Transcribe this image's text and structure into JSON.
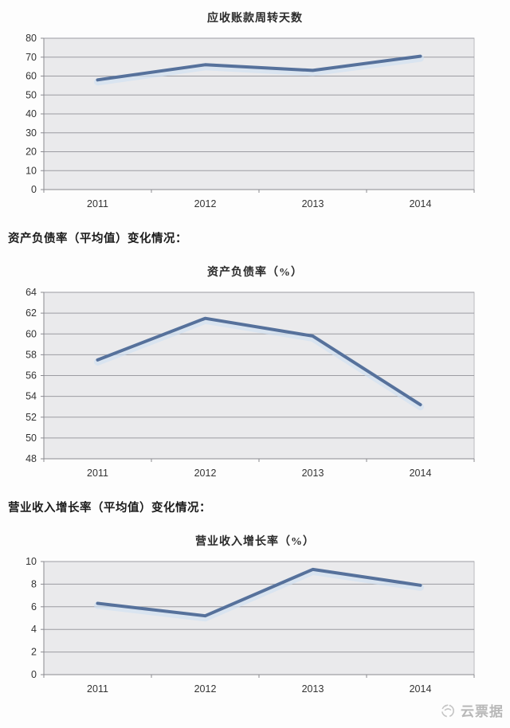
{
  "page": {
    "background": "#fdfdfd"
  },
  "chart_data": [
    {
      "type": "line",
      "section_label": "",
      "title": "应收账款周转天数",
      "categories": [
        "2011",
        "2012",
        "2013",
        "2014"
      ],
      "series": [
        {
          "name": "应收账款周转天数",
          "values": [
            58,
            66,
            63,
            70.5
          ]
        }
      ],
      "ylim": [
        0,
        80
      ],
      "ytick_step": 10,
      "xlabel": "",
      "ylabel": "",
      "grid": true,
      "legend": "none",
      "colors": {
        "line": "#56719b",
        "halo": "#cfe0f2",
        "plot_bg": "#eaeaec",
        "grid": "#9c9ca2",
        "axis": "#8a8a90",
        "tick_text": "#333333"
      }
    },
    {
      "type": "line",
      "section_label": "资产负债率（平均值）变化情况：",
      "title": "资产负债率（%）",
      "categories": [
        "2011",
        "2012",
        "2013",
        "2014"
      ],
      "series": [
        {
          "name": "资产负债率",
          "values": [
            57.5,
            61.5,
            59.8,
            53.2
          ]
        }
      ],
      "ylim": [
        48,
        64
      ],
      "ytick_step": 2,
      "xlabel": "",
      "ylabel": "",
      "grid": true,
      "legend": "none",
      "colors": {
        "line": "#56719b",
        "halo": "#cfe0f2",
        "plot_bg": "#eaeaec",
        "grid": "#9c9ca2",
        "axis": "#8a8a90",
        "tick_text": "#333333"
      }
    },
    {
      "type": "line",
      "section_label": "营业收入增长率（平均值）变化情况：",
      "title": "营业收入增长率（%）",
      "categories": [
        "2011",
        "2012",
        "2013",
        "2014"
      ],
      "series": [
        {
          "name": "营业收入增长率",
          "values": [
            6.3,
            5.2,
            9.3,
            7.9
          ]
        }
      ],
      "ylim": [
        0,
        10
      ],
      "ytick_step": 2,
      "xlabel": "",
      "ylabel": "",
      "grid": true,
      "legend": "none",
      "colors": {
        "line": "#56719b",
        "halo": "#cfe0f2",
        "plot_bg": "#eaeaec",
        "grid": "#9c9ca2",
        "axis": "#8a8a90",
        "tick_text": "#333333"
      }
    }
  ],
  "watermark": {
    "icon": "cloud-logo-icon",
    "label": "云票据",
    "color": "#b8b8b8"
  }
}
